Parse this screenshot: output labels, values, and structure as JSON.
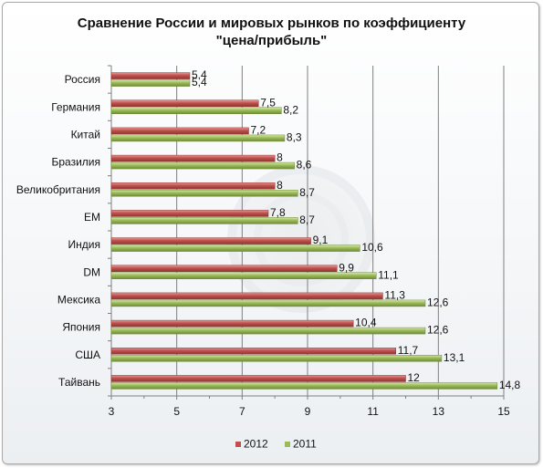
{
  "chart_data": {
    "type": "bar",
    "orientation": "horizontal",
    "title_lines": [
      "Сравнение России и мировых рынков по коэффициенту",
      "\"цена/прибыль\""
    ],
    "categories": [
      "Россия",
      "Германия",
      "Китай",
      "Бразилия",
      "Великобритания",
      "EM",
      "Индия",
      "DM",
      "Мексика",
      "Япония",
      "США",
      "Тайвань"
    ],
    "series": [
      {
        "name": "2012",
        "color": "#c0504d",
        "values": [
          5.4,
          7.5,
          7.2,
          8,
          8,
          7.8,
          9.1,
          9.9,
          11.3,
          10.4,
          11.7,
          12
        ],
        "labels": [
          "5,4",
          "7,5",
          "7,2",
          "8",
          "8",
          "7,8",
          "9,1",
          "9,9",
          "11,3",
          "10,4",
          "11,7",
          "12"
        ]
      },
      {
        "name": "2011",
        "color": "#9bbb59",
        "values": [
          5.4,
          8.2,
          8.3,
          8.6,
          8.7,
          8.7,
          10.6,
          11.1,
          12.6,
          12.6,
          13.1,
          14.8
        ],
        "labels": [
          "5,4",
          "8,2",
          "8,3",
          "8,6",
          "8,7",
          "8,7",
          "10,6",
          "11,1",
          "12,6",
          "12,6",
          "13,1",
          "14,8"
        ]
      }
    ],
    "xlim": [
      3,
      15
    ],
    "xticks": [
      3,
      5,
      7,
      9,
      11,
      13,
      15
    ],
    "grid": true,
    "legend_position": "bottom"
  }
}
